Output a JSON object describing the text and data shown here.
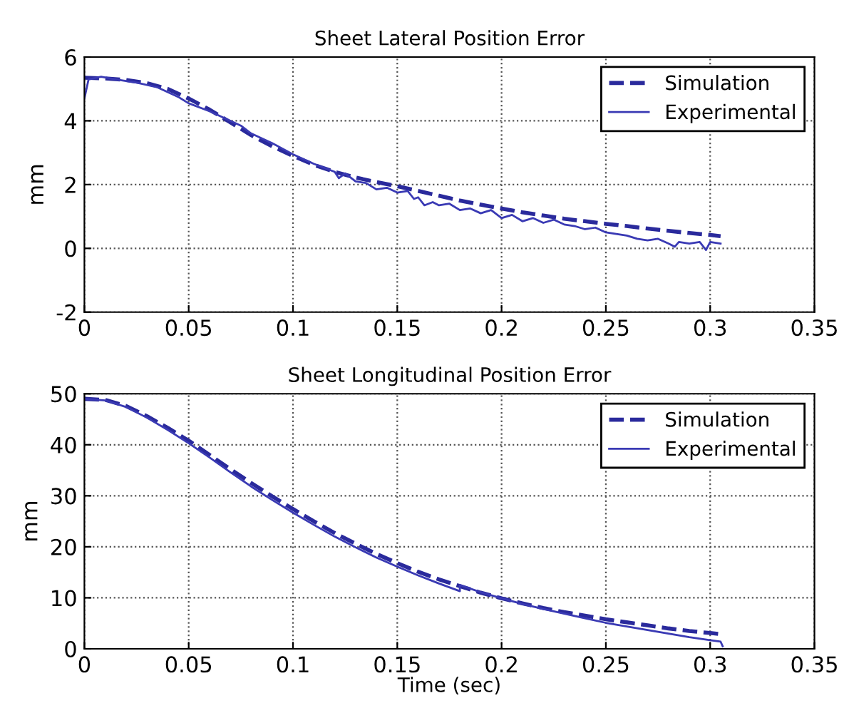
{
  "chart_data": [
    {
      "type": "line",
      "title": "Sheet Lateral Position Error",
      "ylabel": "mm",
      "xlim": [
        0,
        0.35
      ],
      "xticks": [
        0,
        0.05,
        0.1,
        0.15,
        0.2,
        0.25,
        0.3,
        0.35
      ],
      "ylim": [
        -2,
        6
      ],
      "yticks": [
        -2,
        0,
        2,
        4,
        6
      ],
      "grid": true,
      "legend": "top right",
      "series": [
        {
          "name": "Simulation",
          "color": "#2a2a9c",
          "line_style": "dashed",
          "x": [
            0,
            0.01,
            0.02,
            0.03,
            0.04,
            0.05,
            0.06,
            0.07,
            0.08,
            0.09,
            0.1,
            0.11,
            0.12,
            0.13,
            0.14,
            0.15,
            0.16,
            0.17,
            0.18,
            0.19,
            0.2,
            0.21,
            0.22,
            0.23,
            0.24,
            0.25,
            0.26,
            0.27,
            0.28,
            0.29,
            0.3,
            0.305
          ],
          "values": [
            5.35,
            5.33,
            5.28,
            5.18,
            5.0,
            4.7,
            4.35,
            3.95,
            3.55,
            3.2,
            2.9,
            2.62,
            2.4,
            2.22,
            2.08,
            1.95,
            1.8,
            1.65,
            1.5,
            1.37,
            1.25,
            1.13,
            1.03,
            0.93,
            0.85,
            0.77,
            0.7,
            0.62,
            0.55,
            0.48,
            0.42,
            0.38
          ]
        },
        {
          "name": "Experimental",
          "color": "#3a3ab4",
          "line_style": "solid",
          "x": [
            0,
            0.002,
            0.008,
            0.015,
            0.025,
            0.035,
            0.045,
            0.05,
            0.06,
            0.07,
            0.075,
            0.08,
            0.085,
            0.09,
            0.1,
            0.11,
            0.12,
            0.122,
            0.125,
            0.13,
            0.135,
            0.14,
            0.145,
            0.15,
            0.155,
            0.158,
            0.16,
            0.163,
            0.167,
            0.17,
            0.175,
            0.18,
            0.185,
            0.19,
            0.195,
            0.2,
            0.205,
            0.21,
            0.215,
            0.22,
            0.225,
            0.23,
            0.235,
            0.24,
            0.245,
            0.25,
            0.255,
            0.26,
            0.265,
            0.27,
            0.275,
            0.28,
            0.283,
            0.285,
            0.29,
            0.295,
            0.298,
            0.3,
            0.305
          ],
          "values": [
            4.7,
            5.3,
            5.38,
            5.3,
            5.2,
            5.05,
            4.75,
            4.55,
            4.3,
            4.0,
            3.85,
            3.6,
            3.45,
            3.3,
            2.95,
            2.65,
            2.4,
            2.2,
            2.35,
            2.1,
            2.05,
            1.85,
            1.9,
            1.75,
            1.8,
            1.55,
            1.6,
            1.35,
            1.45,
            1.35,
            1.4,
            1.2,
            1.25,
            1.1,
            1.2,
            0.95,
            1.05,
            0.85,
            0.95,
            0.8,
            0.9,
            0.75,
            0.7,
            0.6,
            0.65,
            0.5,
            0.45,
            0.4,
            0.3,
            0.25,
            0.3,
            0.15,
            0.05,
            0.2,
            0.15,
            0.2,
            -0.05,
            0.2,
            0.15
          ]
        }
      ]
    },
    {
      "type": "line",
      "title": "Sheet Longitudinal Position Error",
      "xlabel": "Time (sec)",
      "ylabel": "mm",
      "xlim": [
        0,
        0.35
      ],
      "xticks": [
        0,
        0.05,
        0.1,
        0.15,
        0.2,
        0.25,
        0.3,
        0.35
      ],
      "ylim": [
        0,
        50
      ],
      "yticks": [
        0,
        10,
        20,
        30,
        40,
        50
      ],
      "grid": true,
      "legend": "top right",
      "series": [
        {
          "name": "Simulation",
          "color": "#2a2a9c",
          "line_style": "dashed",
          "x": [
            0,
            0.01,
            0.02,
            0.03,
            0.04,
            0.05,
            0.06,
            0.07,
            0.08,
            0.09,
            0.1,
            0.11,
            0.12,
            0.13,
            0.14,
            0.15,
            0.16,
            0.17,
            0.18,
            0.19,
            0.2,
            0.21,
            0.22,
            0.23,
            0.24,
            0.25,
            0.26,
            0.27,
            0.28,
            0.29,
            0.3,
            0.305
          ],
          "values": [
            49,
            48.8,
            47.6,
            45.6,
            43.3,
            40.8,
            38,
            35.2,
            32.5,
            29.9,
            27.4,
            25,
            22.7,
            20.6,
            18.6,
            16.8,
            15.1,
            13.6,
            12.3,
            11,
            9.9,
            8.9,
            8,
            7.2,
            6.5,
            5.8,
            5.2,
            4.6,
            4.0,
            3.5,
            3.1,
            2.9
          ]
        },
        {
          "name": "Experimental",
          "color": "#3a3ab4",
          "line_style": "solid",
          "x": [
            0,
            0.01,
            0.02,
            0.03,
            0.04,
            0.05,
            0.06,
            0.07,
            0.08,
            0.09,
            0.1,
            0.11,
            0.12,
            0.13,
            0.14,
            0.15,
            0.16,
            0.17,
            0.18,
            0.18,
            0.19,
            0.2,
            0.21,
            0.22,
            0.23,
            0.24,
            0.25,
            0.26,
            0.27,
            0.28,
            0.29,
            0.3,
            0.305,
            0.306
          ],
          "values": [
            49,
            48.7,
            47.4,
            45.3,
            42.9,
            40.3,
            37.5,
            34.6,
            31.8,
            29.2,
            26.7,
            24.3,
            22,
            19.9,
            17.9,
            16.1,
            14.4,
            12.8,
            11.3,
            12.5,
            11.1,
            9.9,
            8.8,
            7.8,
            6.9,
            6.0,
            5.1,
            4.4,
            3.7,
            3.0,
            2.3,
            1.7,
            1.4,
            0.5
          ]
        }
      ]
    }
  ]
}
